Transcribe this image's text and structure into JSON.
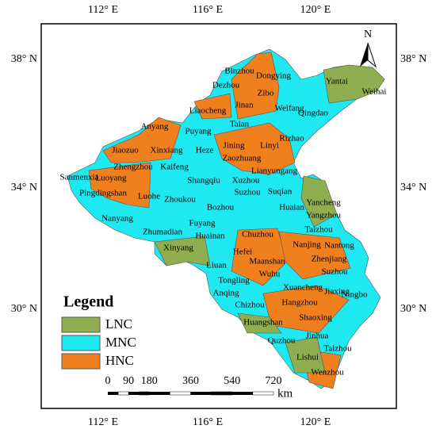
{
  "axes": {
    "top": [
      "112° E",
      "116° E",
      "120° E"
    ],
    "bottom": [
      "112° E",
      "116° E",
      "120° E"
    ],
    "left": [
      "38° N",
      "34° N",
      "30° N"
    ],
    "right": [
      "38° N",
      "34° N",
      "30° N"
    ]
  },
  "north": "N",
  "cities": [
    "Binzhou",
    "Dongying",
    "Dezhou",
    "Zibo",
    "Yantai",
    "Weihai",
    "Liaocheng",
    "Jinan",
    "Weifang",
    "Qingdao",
    "Anyang",
    "Puyang",
    "Taian",
    "Rizhao",
    "Jiaozuo",
    "Xinxiang",
    "Heze",
    "Jining",
    "Linyi",
    "Zaozhuang",
    "Lianyungang",
    "Sanmenxia",
    "Zhengzhou",
    "Kaifeng",
    "Luoyang",
    "Pingdingshan",
    "Luohe",
    "Shangqiu",
    "Xuzhou",
    "Suqian",
    "Zhoukou",
    "Suzhou",
    "Bozhou",
    "Huaian",
    "Yancheng",
    "Nanyang",
    "Fuyang",
    "Yangzhou",
    "Zhumadian",
    "Huainan",
    "Chuzhou",
    "Taizhou",
    "Xinyang",
    "Hefei",
    "Nanjing",
    "Nantong",
    "Liuan",
    "Maanshan",
    "Zhenjiang",
    "Wuhu",
    "Suzhou",
    "Tongling",
    "Xuancheng",
    "Jiaxing",
    "Anqing",
    "Chizhou",
    "Hangzhou",
    "Ningbo",
    "Huangshan",
    "Shaoxing",
    "Jinhua",
    "Quzhou",
    "Taizhou",
    "Lishui",
    "Wenzhou"
  ],
  "legend": {
    "title": "Legend",
    "items": [
      {
        "label": "LNC",
        "color": "#8fae4f"
      },
      {
        "label": "MNC",
        "color": "#1ee8f0"
      },
      {
        "label": "HNC",
        "color": "#f07f1e"
      }
    ]
  },
  "scale": {
    "ticks": [
      0,
      90,
      180,
      360,
      540,
      720
    ],
    "unit": "km"
  }
}
